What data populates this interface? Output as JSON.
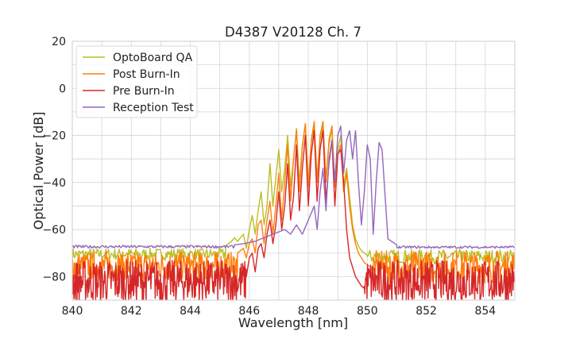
{
  "chart_data": {
    "type": "line",
    "title": "D4387 V20128 Ch. 7",
    "xlabel": "Wavelength [nm]",
    "ylabel": "Optical Power [dB]",
    "xlim": [
      840,
      855
    ],
    "ylim": [
      -90,
      20
    ],
    "x_ticks": [
      840,
      842,
      844,
      846,
      848,
      850,
      852,
      854
    ],
    "x_tick_labels": [
      "840",
      "842",
      "844",
      "846",
      "848",
      "850",
      "852",
      "854"
    ],
    "y_ticks": [
      20,
      0,
      -20,
      -40,
      -60,
      -80
    ],
    "y_tick_labels": [
      "20",
      "0",
      "−20",
      "−40",
      "−60",
      "−80"
    ],
    "grid": true,
    "legend_position": "top-left",
    "series": [
      {
        "name": "OptoBoard QA",
        "color": "#bcbd22",
        "noise_floor": {
          "from": 840,
          "to": 845.2,
          "mean": -70.5,
          "spread": 2.5
        },
        "noise_floor_right": {
          "from": 850.0,
          "to": 855,
          "mean": -71.5,
          "spread": 3.0
        },
        "x": [
          845.2,
          845.4,
          845.5,
          845.6,
          845.8,
          845.9,
          846.0,
          846.1,
          846.2,
          846.3,
          846.4,
          846.5,
          846.6,
          846.7,
          846.8,
          846.9,
          847.0,
          847.1,
          847.2,
          847.3,
          847.4,
          847.5,
          847.6,
          847.7,
          847.8,
          847.9,
          848.0,
          848.1,
          848.2,
          848.3,
          848.4,
          848.5,
          848.6,
          848.7,
          848.8,
          848.9,
          849.0,
          849.1,
          849.2,
          849.3,
          849.4,
          849.5,
          849.6,
          849.7,
          849.8,
          849.9,
          850.0
        ],
        "y": [
          -67,
          -65,
          -63.5,
          -65,
          -62,
          -68,
          -60,
          -54,
          -62,
          -52,
          -44,
          -58,
          -50,
          -32,
          -50,
          -38,
          -26,
          -44,
          -34,
          -20,
          -42,
          -30,
          -17,
          -40,
          -24,
          -15,
          -40,
          -23,
          -16,
          -38,
          -22,
          -16,
          -38,
          -24,
          -17,
          -39,
          -26,
          -20,
          -41,
          -34,
          -46,
          -58,
          -64,
          -67,
          -69,
          -70,
          -71
        ]
      },
      {
        "name": "Post Burn-In",
        "color": "#ff7f0e",
        "noise_floor": {
          "from": 840,
          "to": 845.6,
          "mean": -75.5,
          "spread": 6
        },
        "noise_floor_right": {
          "from": 850.2,
          "to": 855,
          "mean": -76,
          "spread": 7
        },
        "x": [
          845.6,
          845.8,
          845.9,
          846.0,
          846.1,
          846.2,
          846.3,
          846.4,
          846.5,
          846.6,
          846.7,
          846.8,
          846.9,
          847.0,
          847.1,
          847.2,
          847.3,
          847.4,
          847.5,
          847.6,
          847.7,
          847.8,
          847.9,
          848.0,
          848.1,
          848.2,
          848.3,
          848.4,
          848.5,
          848.6,
          848.7,
          848.8,
          848.9,
          849.0,
          849.1,
          849.2,
          849.3,
          849.4,
          849.5,
          849.6,
          849.7,
          849.8,
          849.9,
          850.0,
          850.1,
          850.2
        ],
        "y": [
          -70,
          -68,
          -72,
          -66,
          -64,
          -70,
          -58,
          -56,
          -66,
          -56,
          -48,
          -62,
          -50,
          -36,
          -56,
          -40,
          -24,
          -48,
          -30,
          -18,
          -44,
          -25,
          -15,
          -42,
          -22,
          -14,
          -40,
          -20,
          -14,
          -40,
          -22,
          -16,
          -42,
          -28,
          -24,
          -44,
          -36,
          -50,
          -60,
          -66,
          -70,
          -72,
          -74,
          -75,
          -76,
          -77
        ]
      },
      {
        "name": "Pre Burn-In",
        "color": "#d62728",
        "noise_floor": {
          "from": 840,
          "to": 845.9,
          "mean": -82,
          "spread": 9
        },
        "noise_floor_right": {
          "from": 849.9,
          "to": 855,
          "mean": -82,
          "spread": 9
        },
        "x": [
          845.9,
          846.0,
          846.1,
          846.2,
          846.3,
          846.4,
          846.5,
          846.6,
          846.7,
          846.8,
          846.9,
          847.0,
          847.1,
          847.2,
          847.3,
          847.4,
          847.5,
          847.6,
          847.7,
          847.8,
          847.9,
          848.0,
          848.1,
          848.2,
          848.3,
          848.4,
          848.5,
          848.6,
          848.7,
          848.8,
          848.9,
          849.0,
          849.1,
          849.2,
          849.3,
          849.4,
          849.5,
          849.6,
          849.7,
          849.8,
          849.9
        ],
        "y": [
          -80,
          -72,
          -70,
          -78,
          -68,
          -66,
          -72,
          -62,
          -56,
          -66,
          -58,
          -44,
          -60,
          -50,
          -32,
          -56,
          -46,
          -24,
          -52,
          -34,
          -20,
          -50,
          -28,
          -18,
          -48,
          -26,
          -18,
          -48,
          -32,
          -22,
          -50,
          -28,
          -26,
          -40,
          -60,
          -72,
          -76,
          -80,
          -82,
          -84,
          -85
        ]
      },
      {
        "name": "Reception Test",
        "color": "#9467bd",
        "noise_floor": {
          "from": 840,
          "to": 845.5,
          "mean": -67.3,
          "spread": 0.6
        },
        "noise_floor_right": {
          "from": 851.0,
          "to": 855,
          "mean": -67.5,
          "spread": 0.5
        },
        "x": [
          845.5,
          845.8,
          846.0,
          846.2,
          846.4,
          846.6,
          846.8,
          847.0,
          847.2,
          847.4,
          847.6,
          847.8,
          848.0,
          848.2,
          848.3,
          848.4,
          848.5,
          848.6,
          848.7,
          848.8,
          848.9,
          849.0,
          849.1,
          849.2,
          849.3,
          849.4,
          849.5,
          849.6,
          849.7,
          849.8,
          849.9,
          850.0,
          850.1,
          850.2,
          850.3,
          850.4,
          850.5,
          850.7,
          851.0
        ],
        "y": [
          -66.5,
          -66,
          -65.5,
          -65,
          -64,
          -63,
          -62,
          -61,
          -60,
          -62,
          -58,
          -62,
          -56,
          -50,
          -60,
          -44,
          -34,
          -52,
          -30,
          -22,
          -40,
          -20,
          -16,
          -36,
          -22,
          -18,
          -30,
          -18,
          -40,
          -58,
          -44,
          -24,
          -30,
          -62,
          -40,
          -23,
          -26,
          -64,
          -66.5
        ]
      }
    ]
  }
}
